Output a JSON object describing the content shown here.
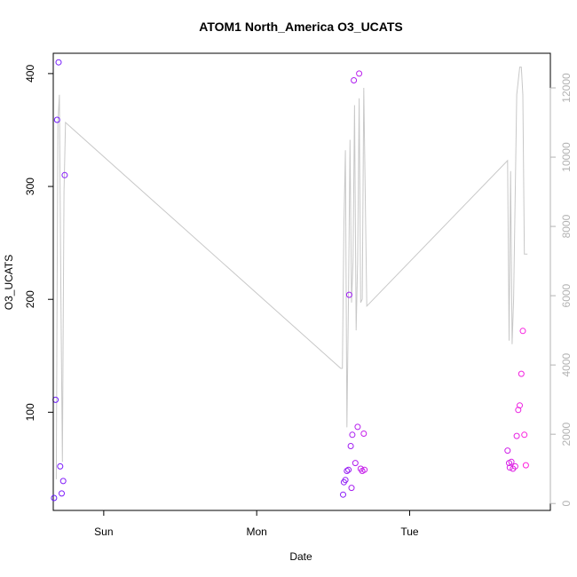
{
  "chart_data": {
    "type": "scatter",
    "title": "ATOM1 North_America O3_UCATS",
    "xlabel": "Date",
    "ylabel": "O3_UCATS",
    "x_ticks": [
      {
        "label": "Sun",
        "x": 0.0
      },
      {
        "label": "Mon",
        "x": 1.0
      },
      {
        "label": "Tue",
        "x": 2.0
      }
    ],
    "xlim": [
      -0.33,
      2.92
    ],
    "ylim": [
      13,
      418
    ],
    "y_ticks": [
      100,
      200,
      300,
      400
    ],
    "y2_lim": [
      -200,
      13000
    ],
    "y2_ticks": [
      0,
      2000,
      4000,
      6000,
      8000,
      10000,
      12000
    ],
    "grid": false,
    "colors": {
      "line": "#c8c8c8",
      "points_start": "#6a1bff",
      "points_end": "#ff22dd",
      "right_axis": "#b3b3b3"
    },
    "points": [
      {
        "x": -0.325,
        "y": 24
      },
      {
        "x": -0.315,
        "y": 111
      },
      {
        "x": -0.305,
        "y": 359
      },
      {
        "x": -0.295,
        "y": 410
      },
      {
        "x": -0.285,
        "y": 52
      },
      {
        "x": -0.275,
        "y": 28
      },
      {
        "x": -0.265,
        "y": 39
      },
      {
        "x": -0.255,
        "y": 310
      },
      {
        "x": 1.565,
        "y": 27
      },
      {
        "x": 1.57,
        "y": 38
      },
      {
        "x": 1.58,
        "y": 40
      },
      {
        "x": 1.59,
        "y": 48
      },
      {
        "x": 1.6,
        "y": 49
      },
      {
        "x": 1.605,
        "y": 204
      },
      {
        "x": 1.615,
        "y": 70
      },
      {
        "x": 1.62,
        "y": 33
      },
      {
        "x": 1.625,
        "y": 80
      },
      {
        "x": 1.635,
        "y": 394
      },
      {
        "x": 1.645,
        "y": 55
      },
      {
        "x": 1.66,
        "y": 87
      },
      {
        "x": 1.67,
        "y": 400
      },
      {
        "x": 1.68,
        "y": 50
      },
      {
        "x": 1.69,
        "y": 48
      },
      {
        "x": 1.7,
        "y": 81
      },
      {
        "x": 1.705,
        "y": 49
      },
      {
        "x": 2.64,
        "y": 66
      },
      {
        "x": 2.65,
        "y": 55
      },
      {
        "x": 2.655,
        "y": 51
      },
      {
        "x": 2.665,
        "y": 56
      },
      {
        "x": 2.675,
        "y": 50
      },
      {
        "x": 2.69,
        "y": 52
      },
      {
        "x": 2.7,
        "y": 79
      },
      {
        "x": 2.71,
        "y": 102
      },
      {
        "x": 2.72,
        "y": 106
      },
      {
        "x": 2.73,
        "y": 134
      },
      {
        "x": 2.74,
        "y": 172
      },
      {
        "x": 2.75,
        "y": 80
      },
      {
        "x": 2.76,
        "y": 53
      }
    ],
    "line_series": {
      "axis": "right",
      "x": [
        -0.31,
        -0.3,
        -0.29,
        -0.28,
        -0.27,
        -0.26,
        -0.25,
        1.55,
        1.56,
        1.57,
        1.58,
        1.59,
        1.6,
        1.61,
        1.62,
        1.63,
        1.64,
        1.65,
        1.66,
        1.67,
        1.68,
        1.69,
        1.7,
        1.72,
        2.64,
        2.65,
        2.66,
        2.67,
        2.68,
        2.7,
        2.72,
        2.73,
        2.74,
        2.75,
        2.77
      ],
      "y": [
        700,
        11000,
        11800,
        6000,
        1200,
        9000,
        11000,
        3900,
        3900,
        8000,
        10200,
        2200,
        6000,
        10500,
        5800,
        7000,
        11500,
        5000,
        7000,
        11700,
        5800,
        5900,
        12000,
        5700,
        9900,
        4700,
        9600,
        4600,
        5900,
        11800,
        12600,
        12600,
        11800,
        7200,
        7200
      ]
    }
  }
}
